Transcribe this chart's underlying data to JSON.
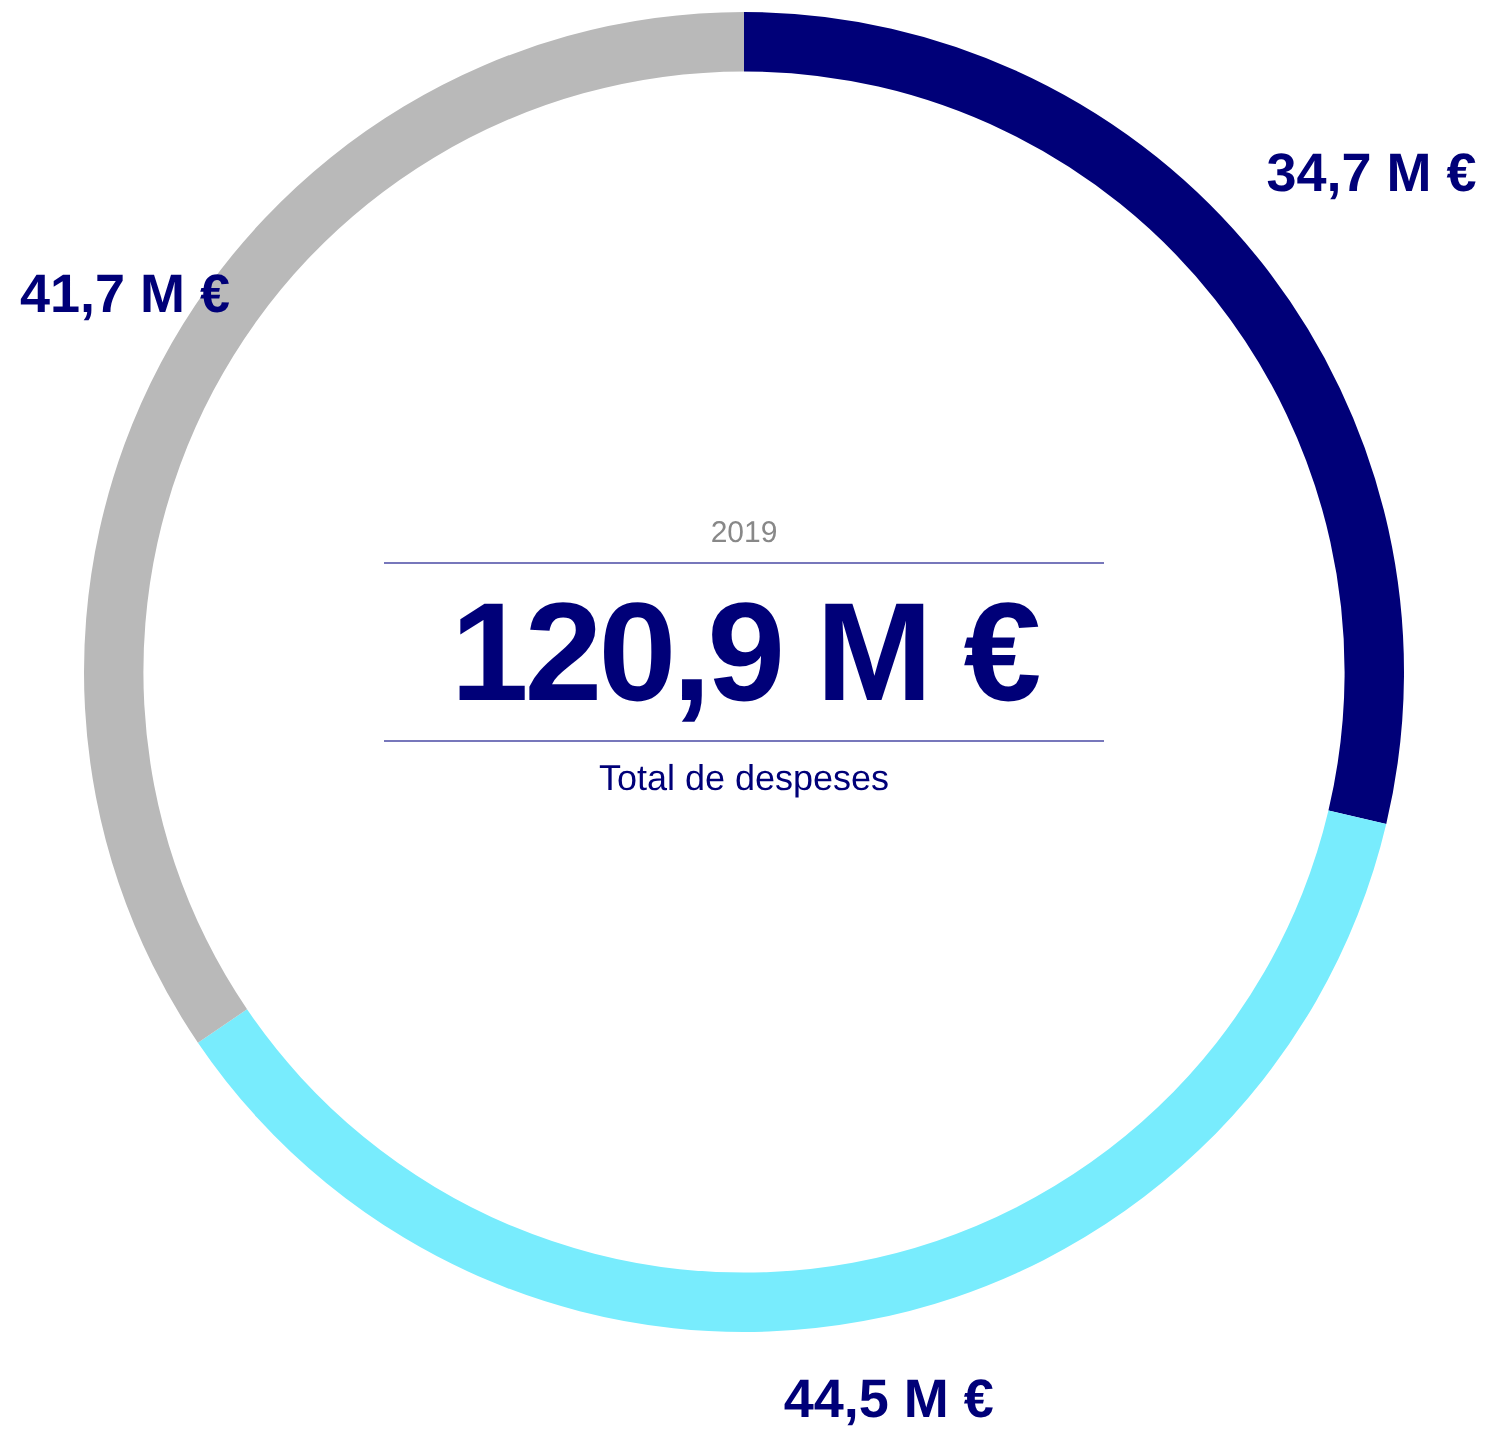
{
  "chart_data": {
    "type": "donut",
    "subtitle": "2019",
    "title": "120,9 M €",
    "annotations": [
      "Total de despeses"
    ],
    "categories": [
      null,
      null,
      null
    ],
    "values": [
      34.7,
      44.5,
      41.7
    ],
    "colors": [
      "#000078",
      "#78ecfd",
      "#b9b9b9"
    ],
    "value_labels": [
      "34,7 M €",
      "44,5 M €",
      "41,7 M €"
    ]
  }
}
